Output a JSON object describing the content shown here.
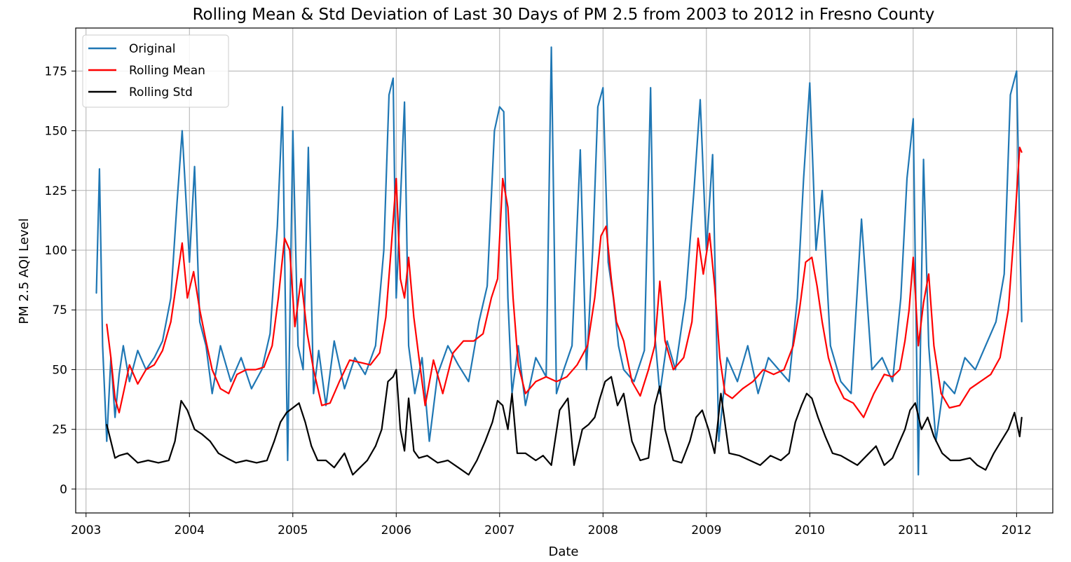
{
  "chart_data": {
    "type": "line",
    "title": "Rolling Mean & Std Deviation of Last 30 Days of PM 2.5 from 2003 to 2012 in Fresno County",
    "xlabel": "Date",
    "ylabel": "PM 2.5 AQI Level",
    "xlim": [
      2002.9,
      2012.35
    ],
    "ylim": [
      -10,
      193
    ],
    "x_ticks": [
      "2003",
      "2004",
      "2005",
      "2006",
      "2007",
      "2008",
      "2009",
      "2010",
      "2011",
      "2012"
    ],
    "y_ticks": [
      "0",
      "25",
      "50",
      "75",
      "100",
      "125",
      "150",
      "175"
    ],
    "grid": true,
    "legend_position": "top-left",
    "series": [
      {
        "name": "Original",
        "color": "#1f77b4",
        "x": [
          2003.1,
          2003.13,
          2003.16,
          2003.2,
          2003.24,
          2003.28,
          2003.32,
          2003.36,
          2003.42,
          2003.5,
          2003.58,
          2003.66,
          2003.74,
          2003.82,
          2003.88,
          2003.93,
          2004.0,
          2004.05,
          2004.1,
          2004.16,
          2004.22,
          2004.3,
          2004.4,
          2004.5,
          2004.6,
          2004.7,
          2004.78,
          2004.85,
          2004.9,
          2004.95,
          2005.0,
          2005.05,
          2005.1,
          2005.15,
          2005.2,
          2005.25,
          2005.32,
          2005.4,
          2005.5,
          2005.6,
          2005.7,
          2005.8,
          2005.88,
          2005.93,
          2005.97,
          2006.0,
          2006.04,
          2006.08,
          2006.12,
          2006.18,
          2006.25,
          2006.32,
          2006.4,
          2006.5,
          2006.6,
          2006.7,
          2006.8,
          2006.88,
          2006.95,
          2007.0,
          2007.04,
          2007.08,
          2007.12,
          2007.18,
          2007.25,
          2007.35,
          2007.45,
          2007.5,
          2007.55,
          2007.62,
          2007.7,
          2007.78,
          2007.84,
          2007.9,
          2007.95,
          2008.0,
          2008.05,
          2008.1,
          2008.15,
          2008.2,
          2008.3,
          2008.4,
          2008.46,
          2008.5,
          2008.55,
          2008.62,
          2008.7,
          2008.8,
          2008.88,
          2008.94,
          2009.0,
          2009.06,
          2009.12,
          2009.2,
          2009.3,
          2009.4,
          2009.5,
          2009.6,
          2009.7,
          2009.8,
          2009.88,
          2009.94,
          2010.0,
          2010.06,
          2010.12,
          2010.2,
          2010.3,
          2010.4,
          2010.5,
          2010.6,
          2010.7,
          2010.8,
          2010.88,
          2010.94,
          2011.0,
          2011.05,
          2011.1,
          2011.15,
          2011.22,
          2011.3,
          2011.4,
          2011.5,
          2011.6,
          2011.7,
          2011.8,
          2011.88,
          2011.94,
          2012.0,
          2012.03,
          2012.05
        ],
        "values": [
          82,
          134,
          60,
          20,
          55,
          30,
          48,
          60,
          45,
          58,
          50,
          55,
          62,
          80,
          120,
          150,
          95,
          135,
          70,
          60,
          40,
          60,
          45,
          55,
          42,
          50,
          65,
          110,
          160,
          12,
          150,
          60,
          50,
          143,
          40,
          58,
          35,
          62,
          42,
          55,
          48,
          60,
          100,
          165,
          172,
          80,
          120,
          162,
          60,
          40,
          55,
          20,
          48,
          60,
          52,
          45,
          70,
          85,
          150,
          160,
          158,
          80,
          40,
          60,
          35,
          55,
          47,
          185,
          40,
          50,
          60,
          142,
          50,
          100,
          160,
          168,
          95,
          80,
          60,
          50,
          45,
          58,
          168,
          65,
          40,
          62,
          50,
          80,
          125,
          163,
          100,
          140,
          20,
          55,
          45,
          60,
          40,
          55,
          50,
          45,
          80,
          130,
          170,
          100,
          125,
          60,
          45,
          40,
          113,
          50,
          55,
          45,
          80,
          130,
          155,
          6,
          138,
          60,
          20,
          45,
          40,
          55,
          50,
          60,
          70,
          90,
          165,
          175,
          109,
          70
        ]
      },
      {
        "name": "Rolling Mean",
        "color": "#ff0000",
        "x": [
          2003.2,
          2003.24,
          2003.28,
          2003.32,
          2003.36,
          2003.42,
          2003.5,
          2003.58,
          2003.66,
          2003.74,
          2003.82,
          2003.88,
          2003.93,
          2003.98,
          2004.04,
          2004.1,
          2004.16,
          2004.22,
          2004.3,
          2004.38,
          2004.46,
          2004.55,
          2004.64,
          2004.72,
          2004.8,
          2004.86,
          2004.92,
          2004.97,
          2005.02,
          2005.08,
          2005.14,
          2005.2,
          2005.28,
          2005.36,
          2005.45,
          2005.55,
          2005.65,
          2005.75,
          2005.84,
          2005.9,
          2005.95,
          2006.0,
          2006.04,
          2006.08,
          2006.12,
          2006.17,
          2006.22,
          2006.28,
          2006.36,
          2006.45,
          2006.55,
          2006.65,
          2006.75,
          2006.84,
          2006.92,
          2006.98,
          2007.03,
          2007.08,
          2007.13,
          2007.18,
          2007.25,
          2007.35,
          2007.45,
          2007.55,
          2007.65,
          2007.75,
          2007.85,
          2007.92,
          2007.98,
          2008.03,
          2008.08,
          2008.13,
          2008.2,
          2008.28,
          2008.36,
          2008.44,
          2008.5,
          2008.55,
          2008.6,
          2008.68,
          2008.78,
          2008.86,
          2008.92,
          2008.97,
          2009.03,
          2009.08,
          2009.13,
          2009.18,
          2009.25,
          2009.35,
          2009.45,
          2009.55,
          2009.65,
          2009.75,
          2009.84,
          2009.9,
          2009.96,
          2010.02,
          2010.07,
          2010.12,
          2010.18,
          2010.25,
          2010.33,
          2010.42,
          2010.52,
          2010.62,
          2010.72,
          2010.8,
          2010.87,
          2010.92,
          2010.96,
          2011.0,
          2011.05,
          2011.1,
          2011.15,
          2011.2,
          2011.27,
          2011.35,
          2011.45,
          2011.55,
          2011.65,
          2011.75,
          2011.84,
          2011.92,
          2011.98,
          2012.03,
          2012.05
        ],
        "values": [
          69,
          55,
          38,
          32,
          40,
          52,
          44,
          50,
          52,
          58,
          70,
          88,
          103,
          80,
          91,
          75,
          62,
          50,
          42,
          40,
          48,
          50,
          50,
          51,
          60,
          80,
          105,
          100,
          68,
          88,
          65,
          50,
          35,
          36,
          45,
          54,
          53,
          52,
          57,
          72,
          100,
          130,
          88,
          80,
          97,
          72,
          55,
          35,
          54,
          40,
          57,
          62,
          62,
          65,
          80,
          88,
          130,
          118,
          80,
          52,
          40,
          45,
          47,
          45,
          47,
          52,
          60,
          80,
          106,
          110,
          88,
          70,
          62,
          45,
          39,
          50,
          60,
          87,
          62,
          50,
          55,
          70,
          105,
          90,
          107,
          85,
          55,
          40,
          38,
          42,
          45,
          50,
          48,
          50,
          60,
          75,
          95,
          97,
          85,
          70,
          55,
          45,
          38,
          36,
          30,
          40,
          48,
          47,
          50,
          62,
          75,
          97,
          60,
          78,
          90,
          60,
          40,
          34,
          35,
          42,
          45,
          48,
          55,
          75,
          110,
          143,
          141
        ]
      },
      {
        "name": "Rolling Std",
        "color": "#000000",
        "x": [
          2003.2,
          2003.24,
          2003.28,
          2003.32,
          2003.4,
          2003.5,
          2003.6,
          2003.7,
          2003.8,
          2003.86,
          2003.92,
          2003.98,
          2004.05,
          2004.12,
          2004.2,
          2004.28,
          2004.36,
          2004.45,
          2004.55,
          2004.65,
          2004.75,
          2004.82,
          2004.88,
          2004.94,
          2005.0,
          2005.06,
          2005.12,
          2005.18,
          2005.24,
          2005.32,
          2005.4,
          2005.5,
          2005.58,
          2005.65,
          2005.72,
          2005.8,
          2005.86,
          2005.92,
          2005.97,
          2006.0,
          2006.04,
          2006.08,
          2006.12,
          2006.17,
          2006.22,
          2006.3,
          2006.4,
          2006.5,
          2006.6,
          2006.7,
          2006.78,
          2006.86,
          2006.93,
          2006.98,
          2007.03,
          2007.08,
          2007.12,
          2007.17,
          2007.25,
          2007.35,
          2007.42,
          2007.5,
          2007.58,
          2007.66,
          2007.72,
          2007.8,
          2007.86,
          2007.92,
          2007.97,
          2008.02,
          2008.08,
          2008.14,
          2008.2,
          2008.28,
          2008.36,
          2008.44,
          2008.5,
          2008.55,
          2008.6,
          2008.68,
          2008.76,
          2008.84,
          2008.9,
          2008.96,
          2009.02,
          2009.08,
          2009.14,
          2009.22,
          2009.32,
          2009.42,
          2009.52,
          2009.62,
          2009.72,
          2009.8,
          2009.86,
          2009.92,
          2009.97,
          2010.02,
          2010.08,
          2010.15,
          2010.22,
          2010.3,
          2010.38,
          2010.46,
          2010.55,
          2010.64,
          2010.72,
          2010.8,
          2010.86,
          2010.92,
          2010.97,
          2011.02,
          2011.08,
          2011.14,
          2011.2,
          2011.28,
          2011.36,
          2011.45,
          2011.55,
          2011.62,
          2011.7,
          2011.78,
          2011.85,
          2011.92,
          2011.98,
          2012.03,
          2012.05
        ],
        "values": [
          27,
          20,
          13,
          14,
          15,
          11,
          12,
          11,
          12,
          20,
          37,
          33,
          25,
          23,
          20,
          15,
          13,
          11,
          12,
          11,
          12,
          20,
          28,
          32,
          34,
          36,
          28,
          18,
          12,
          12,
          9,
          15,
          6,
          9,
          12,
          18,
          25,
          45,
          47,
          50,
          25,
          16,
          38,
          16,
          13,
          14,
          11,
          12,
          9,
          6,
          12,
          20,
          28,
          37,
          35,
          25,
          40,
          15,
          15,
          12,
          14,
          10,
          33,
          38,
          10,
          25,
          27,
          30,
          38,
          45,
          47,
          35,
          40,
          20,
          12,
          13,
          35,
          43,
          25,
          12,
          11,
          20,
          30,
          33,
          25,
          15,
          40,
          15,
          14,
          12,
          10,
          14,
          12,
          15,
          28,
          35,
          40,
          38,
          30,
          22,
          15,
          14,
          12,
          10,
          14,
          18,
          10,
          13,
          19,
          25,
          33,
          36,
          25,
          30,
          22,
          15,
          12,
          12,
          13,
          10,
          8,
          15,
          20,
          25,
          32,
          22,
          30
        ]
      }
    ]
  }
}
